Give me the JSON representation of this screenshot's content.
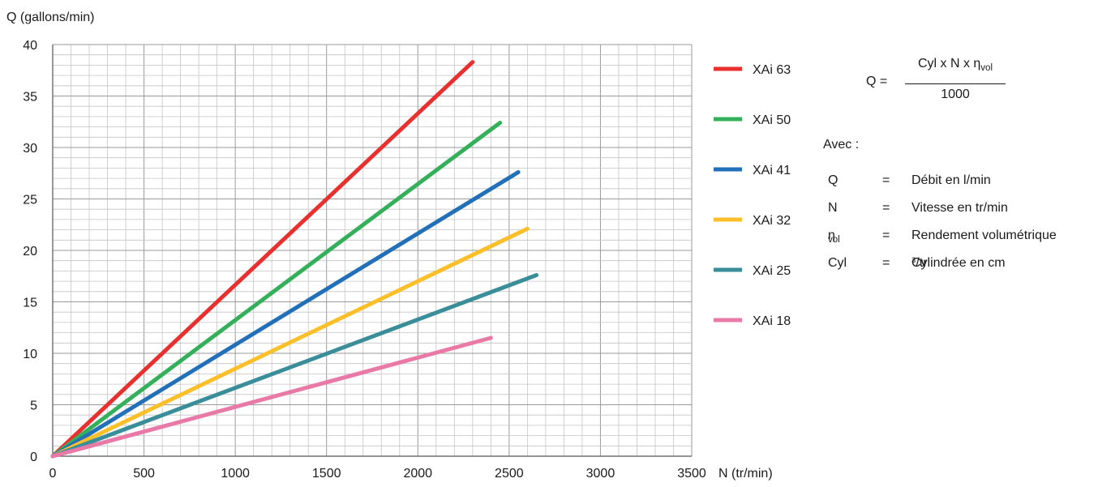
{
  "chart_data": {
    "type": "line",
    "title": "",
    "xlabel": "N (tr/min)",
    "ylabel": "Q (gallons/min)",
    "xlim": [
      0,
      3500
    ],
    "ylim": [
      0,
      40
    ],
    "x_ticks": [
      "0",
      "500",
      "1000",
      "1500",
      "2000",
      "2500",
      "3000",
      "3500"
    ],
    "y_ticks": [
      "0",
      "5",
      "10",
      "15",
      "20",
      "25",
      "30",
      "35",
      "40"
    ],
    "grid": true,
    "legend_position": "right",
    "series": [
      {
        "name": "XAi 63",
        "color": "#e8302f",
        "points": [
          [
            0,
            0
          ],
          [
            2300,
            38.3
          ]
        ]
      },
      {
        "name": "XAi 50",
        "color": "#35b05a",
        "points": [
          [
            0,
            0
          ],
          [
            2450,
            32.4
          ]
        ]
      },
      {
        "name": "XAi 41",
        "color": "#2271b8",
        "points": [
          [
            0,
            0
          ],
          [
            2550,
            27.6
          ]
        ]
      },
      {
        "name": "XAi 32",
        "color": "#fbbf2a",
        "points": [
          [
            0,
            0
          ],
          [
            2600,
            22.1
          ]
        ]
      },
      {
        "name": "XAi 25",
        "color": "#3a8e99",
        "points": [
          [
            0,
            0
          ],
          [
            2650,
            17.6
          ]
        ]
      },
      {
        "name": "XAi 18",
        "color": "#e97aa7",
        "points": [
          [
            0,
            0
          ],
          [
            2400,
            11.5
          ]
        ]
      }
    ]
  },
  "formula": {
    "lhs": "Q =",
    "numerator": "Cyl x N x η",
    "numerator_sub": "vol",
    "denominator": "1000"
  },
  "legend_text": {
    "avec": "Avec :",
    "definitions": [
      {
        "symbol": "Q",
        "symbol_sub": "",
        "eq": "=",
        "desc": "Débit en l/min",
        "desc_sup": "",
        "desc_tail": ""
      },
      {
        "symbol": "N",
        "symbol_sub": "",
        "eq": "=",
        "desc": "Vitesse en tr/min",
        "desc_sup": "",
        "desc_tail": ""
      },
      {
        "symbol": "η",
        "symbol_sub": "vol",
        "eq": "=",
        "desc": "Rendement volumétrique",
        "desc_sup": "",
        "desc_tail": ""
      },
      {
        "symbol": "Cyl",
        "symbol_sub": "",
        "eq": "=",
        "desc": "Cylindrée en cm",
        "desc_sup": "3",
        "desc_tail": "/tr"
      }
    ]
  }
}
